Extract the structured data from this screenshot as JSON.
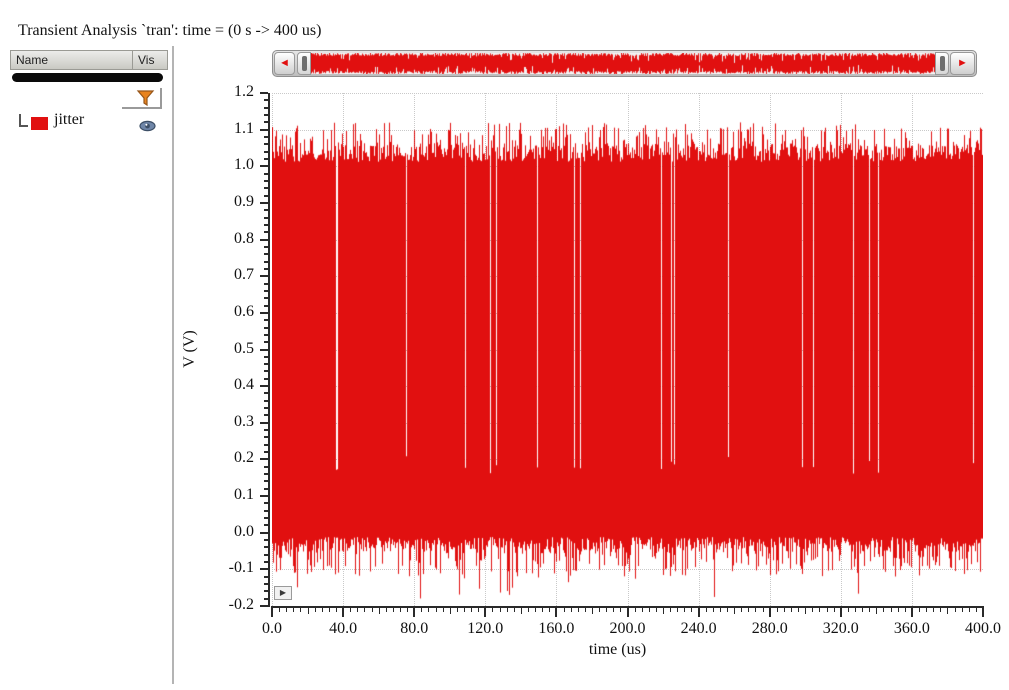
{
  "title": "Transient Analysis `tran': time = (0 s -> 400 us)",
  "colors": {
    "trace": "#e11010",
    "grid": "#c9c9c9",
    "axis": "#2a2a2a",
    "funnel_fill": "#e8831e",
    "funnel_stroke": "#96561a",
    "eye_fill": "#6f86a8",
    "eye_stroke": "#3d4f66"
  },
  "icons": {
    "scroll_left_arrow": "◄",
    "scroll_right_arrow": "►",
    "expander_play": "▶",
    "filter_funnel": "funnel-icon",
    "visibility_eye": "eye-icon"
  },
  "signal_panel": {
    "name_header": "Name",
    "vis_header": "Vis",
    "signals": [
      {
        "label": "jitter",
        "color": "#e11010",
        "visible": true
      }
    ]
  },
  "chart_data": {
    "type": "line",
    "title": "Transient Analysis `tran': time = (0 s -> 400 us)",
    "xlabel": "time (us)",
    "ylabel": "V (V)",
    "xlim": [
      0,
      400
    ],
    "ylim": [
      -0.2,
      1.2
    ],
    "x_tick_step": 40,
    "x_minor_step": 4,
    "y_tick_step": 0.1,
    "y_minor_step": 0.02,
    "x_tick_labels": [
      "0.0",
      "40.0",
      "80.0",
      "120.0",
      "160.0",
      "200.0",
      "240.0",
      "280.0",
      "320.0",
      "360.0",
      "400.0"
    ],
    "y_tick_labels": [
      "-0.2",
      "-0.1",
      "0.0",
      "0.1",
      "0.2",
      "0.3",
      "0.4",
      "0.5",
      "0.6",
      "0.7",
      "0.8",
      "0.9",
      "1.0",
      "1.1",
      "1.2"
    ],
    "grid": "dotted",
    "legend_position": "left-panel",
    "series": [
      {
        "name": "jitter",
        "color": "#e11010",
        "kind": "dense-noise-band",
        "body_low": 0.0,
        "body_high": 1.0,
        "spike_above_typ": 0.06,
        "spike_above_max": 0.16,
        "spike_below_typ": -0.05,
        "spike_below_min": -0.18,
        "description": "Dense jitter noise: solid band 0 V to 1 V across 0-400 us with random upward spikes to ~1.15 V and downward spikes to ~-0.18 V"
      }
    ],
    "seed": 1337
  }
}
